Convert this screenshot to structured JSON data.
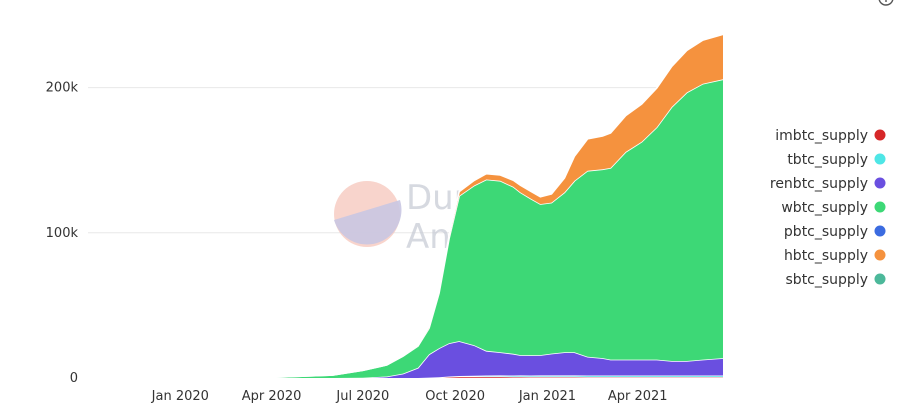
{
  "chart_data": {
    "type": "area",
    "stacked": true,
    "ylim": [
      0,
      250000
    ],
    "yticks": [
      {
        "value": 0,
        "label": "0"
      },
      {
        "value": 100000,
        "label": "100k"
      },
      {
        "value": 200000,
        "label": "200k"
      }
    ],
    "xlim": [
      "2019-10-01",
      "2021-06-25"
    ],
    "xticks": [
      {
        "value": "2020-01-01",
        "label": "Jan 2020"
      },
      {
        "value": "2020-04-01",
        "label": "Apr 2020"
      },
      {
        "value": "2020-07-01",
        "label": "Jul 2020"
      },
      {
        "value": "2020-10-01",
        "label": "Oct 2020"
      },
      {
        "value": "2021-01-01",
        "label": "Jan 2021"
      },
      {
        "value": "2021-04-01",
        "label": "Apr 2021"
      }
    ],
    "grid": true,
    "legend_position": "right",
    "x": [
      "2019-10-01",
      "2020-01-01",
      "2020-04-01",
      "2020-06-01",
      "2020-07-01",
      "2020-07-25",
      "2020-08-10",
      "2020-08-25",
      "2020-09-05",
      "2020-09-15",
      "2020-09-25",
      "2020-10-05",
      "2020-10-20",
      "2020-11-01",
      "2020-11-15",
      "2020-11-28",
      "2020-12-05",
      "2020-12-15",
      "2020-12-25",
      "2021-01-05",
      "2021-01-18",
      "2021-01-28",
      "2021-02-10",
      "2021-02-25",
      "2021-03-05",
      "2021-03-20",
      "2021-04-05",
      "2021-04-20",
      "2021-05-05",
      "2021-05-20",
      "2021-06-05",
      "2021-06-25"
    ],
    "series": [
      {
        "name": "imbtc_supply",
        "color": "#d62728",
        "values": [
          0,
          0,
          0,
          0,
          0,
          0,
          0,
          0,
          300,
          500,
          800,
          1000,
          1000,
          1000,
          1000,
          900,
          900,
          800,
          800,
          800,
          800,
          800,
          700,
          700,
          700,
          700,
          700,
          700,
          700,
          700,
          700,
          700
        ]
      },
      {
        "name": "tbtc_supply",
        "color": "#4ee6e6",
        "values": [
          0,
          0,
          0,
          0,
          0,
          0,
          0,
          0,
          0,
          0,
          200,
          400,
          600,
          700,
          800,
          800,
          900,
          900,
          1000,
          1000,
          1000,
          1000,
          1000,
          1000,
          1000,
          1000,
          1000,
          1000,
          1000,
          1000,
          1000,
          1000
        ]
      },
      {
        "name": "renbtc_supply",
        "color": "#6a4fe0",
        "values": [
          0,
          0,
          0,
          0,
          200,
          1000,
          3000,
          7000,
          16000,
          20000,
          23000,
          24000,
          21000,
          17000,
          16000,
          15000,
          14000,
          14000,
          14000,
          15000,
          16000,
          16000,
          13000,
          12000,
          11000,
          11000,
          11000,
          11000,
          10000,
          10000,
          11000,
          12000
        ]
      },
      {
        "name": "wbtc_supply",
        "color": "#3dd876",
        "values": [
          500,
          500,
          500,
          2000,
          5000,
          8000,
          12000,
          15000,
          18000,
          38000,
          72000,
          100000,
          110000,
          118000,
          118000,
          115000,
          112000,
          108000,
          104000,
          104000,
          110000,
          118000,
          128000,
          130000,
          132000,
          143000,
          150000,
          160000,
          175000,
          185000,
          190000,
          192000
        ]
      },
      {
        "name": "pbtc_supply",
        "color": "#3b6be0",
        "values": [
          0,
          0,
          0,
          0,
          0,
          0,
          0,
          0,
          0,
          0,
          0,
          0,
          0,
          0,
          0,
          0,
          0,
          0,
          0,
          0,
          0,
          0,
          0,
          0,
          0,
          0,
          0,
          0,
          0,
          0,
          0,
          0
        ]
      },
      {
        "name": "hbtc_supply",
        "color": "#f5923e",
        "values": [
          0,
          0,
          0,
          0,
          0,
          0,
          200,
          500,
          1000,
          1500,
          2000,
          3000,
          3500,
          4000,
          4000,
          4500,
          5000,
          5000,
          5000,
          6000,
          10000,
          17000,
          22000,
          23000,
          24000,
          25000,
          26000,
          27000,
          28000,
          29000,
          30000,
          31000
        ]
      },
      {
        "name": "sbtc_supply",
        "color": "#4cb89a",
        "values": [
          0,
          0,
          0,
          0,
          0,
          0,
          0,
          0,
          0,
          0,
          0,
          0,
          0,
          0,
          0,
          0,
          0,
          0,
          0,
          0,
          0,
          0,
          0,
          0,
          0,
          0,
          0,
          0,
          0,
          0,
          0,
          0
        ]
      }
    ]
  },
  "watermark": {
    "line1": "Dune",
    "line2": "Analytics"
  }
}
